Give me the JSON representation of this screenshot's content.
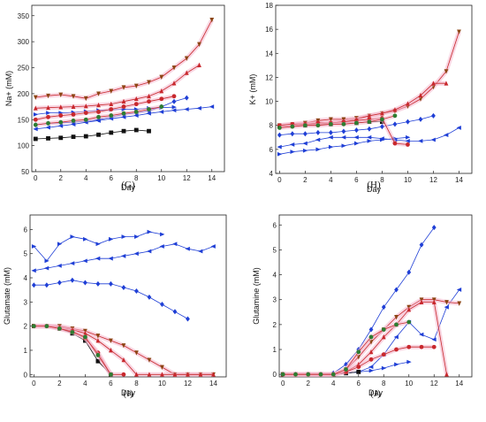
{
  "colors": {
    "blue": "#1f3fd6",
    "red": "#c8282d",
    "pink": "#f4b6cc",
    "black": "#111111",
    "green": "#2e7d32",
    "brown": "#8b4513"
  },
  "chart_data": [
    {
      "panel": "(G)",
      "type": "line",
      "xlabel": "Day",
      "ylabel": "Na+ (mM)",
      "xlim": [
        -0.3,
        15
      ],
      "ylim": [
        50,
        370
      ],
      "xticks": [
        "0",
        "2",
        "4",
        "6",
        "8",
        "10",
        "12",
        "14"
      ],
      "yticks": [
        "50",
        "100",
        "150",
        "200",
        "250",
        "300",
        "350"
      ],
      "series": [
        {
          "style": "blue",
          "marker": "tri-right",
          "x": [
            0,
            1,
            2,
            3,
            4,
            5,
            6,
            7,
            8,
            9,
            10,
            11
          ],
          "y": [
            160,
            163,
            163,
            164,
            166,
            168,
            169,
            170,
            170,
            172,
            173,
            174
          ]
        },
        {
          "style": "blue",
          "marker": "tri-left",
          "x": [
            0,
            1,
            2,
            3,
            4,
            5,
            6,
            7,
            8,
            9,
            10,
            11,
            12,
            13,
            14
          ],
          "y": [
            132,
            135,
            138,
            141,
            145,
            148,
            152,
            155,
            158,
            162,
            165,
            168,
            170,
            172,
            175
          ]
        },
        {
          "style": "blue",
          "marker": "diamond",
          "x": [
            0,
            1,
            2,
            3,
            4,
            5,
            6,
            7,
            8,
            9,
            10,
            11,
            12
          ],
          "y": [
            140,
            143,
            144,
            145,
            147,
            150,
            155,
            160,
            163,
            167,
            175,
            185,
            192
          ]
        },
        {
          "style": "black",
          "marker": "square",
          "x": [
            0,
            1,
            2,
            3,
            4,
            5,
            6,
            7,
            8,
            9
          ],
          "y": [
            113,
            114,
            115,
            117,
            118,
            121,
            125,
            128,
            130,
            128
          ]
        },
        {
          "style": "red",
          "marker": "down",
          "x": [
            0,
            1,
            2,
            3,
            4,
            5,
            6,
            7,
            8,
            9,
            10,
            11,
            12,
            13,
            14
          ],
          "y": [
            193,
            196,
            198,
            195,
            191,
            200,
            205,
            212,
            215,
            222,
            232,
            250,
            268,
            295,
            342
          ]
        },
        {
          "style": "red",
          "marker": "up",
          "x": [
            0,
            1,
            2,
            3,
            4,
            5,
            6,
            7,
            8,
            9,
            10,
            11,
            12,
            13
          ],
          "y": [
            172,
            173,
            174,
            175,
            176,
            178,
            180,
            185,
            190,
            195,
            205,
            220,
            240,
            255
          ]
        },
        {
          "style": "red",
          "marker": "circle",
          "x": [
            0,
            1,
            2,
            3,
            4,
            5,
            6,
            7,
            8,
            9,
            10,
            11
          ],
          "y": [
            150,
            155,
            158,
            160,
            163,
            165,
            170,
            175,
            180,
            185,
            190,
            195
          ]
        },
        {
          "style": "red",
          "marker": "hex",
          "x": [
            0,
            1,
            2,
            3,
            4,
            5,
            6,
            7,
            8,
            9,
            10
          ],
          "y": [
            140,
            143,
            145,
            148,
            150,
            155,
            158,
            162,
            165,
            170,
            175
          ]
        }
      ]
    },
    {
      "panel": "(H)",
      "type": "line",
      "xlabel": "Day",
      "ylabel": "K+ (mM)",
      "xlim": [
        -0.3,
        15
      ],
      "ylim": [
        4,
        18
      ],
      "xticks": [
        "0",
        "2",
        "4",
        "6",
        "8",
        "10",
        "12",
        "14"
      ],
      "yticks": [
        "4",
        "6",
        "8",
        "10",
        "12",
        "14",
        "16",
        "18"
      ],
      "series": [
        {
          "style": "blue",
          "marker": "tri-right",
          "x": [
            0,
            1,
            2,
            3,
            4,
            5,
            6,
            7,
            8,
            9,
            10
          ],
          "y": [
            5.6,
            5.8,
            5.9,
            6.0,
            6.2,
            6.3,
            6.5,
            6.7,
            6.8,
            6.9,
            7.0
          ]
        },
        {
          "style": "blue",
          "marker": "tri-left",
          "x": [
            0,
            1,
            2,
            3,
            4,
            5,
            6,
            7,
            8,
            9,
            10,
            11,
            12,
            13,
            14
          ],
          "y": [
            6.2,
            6.4,
            6.5,
            6.8,
            7.0,
            7.0,
            7.0,
            7.0,
            6.9,
            6.8,
            6.7,
            6.7,
            6.8,
            7.2,
            7.8
          ]
        },
        {
          "style": "blue",
          "marker": "diamond",
          "x": [
            0,
            1,
            2,
            3,
            4,
            5,
            6,
            7,
            8,
            9,
            10,
            11,
            12
          ],
          "y": [
            7.2,
            7.3,
            7.3,
            7.4,
            7.4,
            7.5,
            7.6,
            7.7,
            7.9,
            8.1,
            8.3,
            8.5,
            8.8
          ]
        },
        {
          "style": "black",
          "marker": "square",
          "x": [
            0,
            1,
            2,
            3,
            4,
            5,
            6,
            7,
            8
          ],
          "y": [
            7.9,
            8.0,
            8.0,
            8.1,
            8.1,
            8.2,
            8.2,
            8.3,
            8.3
          ]
        },
        {
          "style": "red",
          "marker": "down",
          "x": [
            0,
            1,
            2,
            3,
            4,
            5,
            6,
            7,
            8,
            9,
            10,
            11,
            12,
            13,
            14
          ],
          "y": [
            8.0,
            8.1,
            8.2,
            8.4,
            8.5,
            8.5,
            8.6,
            8.8,
            9.0,
            9.2,
            9.6,
            10.2,
            11.2,
            12.5,
            15.8
          ]
        },
        {
          "style": "red",
          "marker": "up",
          "x": [
            0,
            1,
            2,
            3,
            4,
            5,
            6,
            7,
            8,
            9,
            10,
            11,
            12,
            13
          ],
          "y": [
            7.9,
            8.0,
            8.1,
            8.1,
            8.2,
            8.3,
            8.5,
            8.8,
            9.0,
            9.3,
            9.8,
            10.5,
            11.5,
            11.5
          ]
        },
        {
          "style": "red",
          "marker": "circle",
          "x": [
            0,
            1,
            2,
            3,
            4,
            5,
            6,
            7,
            8,
            9,
            10
          ],
          "y": [
            8.0,
            8.1,
            8.1,
            8.2,
            8.2,
            8.3,
            8.4,
            8.5,
            8.6,
            6.5,
            6.4
          ]
        },
        {
          "style": "red",
          "marker": "hex",
          "x": [
            0,
            1,
            2,
            3,
            4,
            5,
            6,
            7,
            8,
            9
          ],
          "y": [
            7.8,
            7.9,
            8.0,
            8.0,
            8.1,
            8.1,
            8.2,
            8.3,
            8.5,
            8.8
          ]
        }
      ]
    },
    {
      "panel": "(I)",
      "type": "line",
      "xlabel": "Day",
      "ylabel": "Glutamate (mM)",
      "xlim": [
        -0.3,
        15
      ],
      "ylim": [
        -0.1,
        6.6
      ],
      "xticks": [
        "0",
        "2",
        "4",
        "6",
        "8",
        "10",
        "12",
        "14"
      ],
      "yticks": [
        "0",
        "1",
        "2",
        "3",
        "4",
        "5",
        "6"
      ],
      "series": [
        {
          "style": "blue",
          "marker": "tri-right",
          "x": [
            0,
            1,
            2,
            3,
            4,
            5,
            6,
            7,
            8,
            9,
            10
          ],
          "y": [
            5.3,
            4.7,
            5.4,
            5.7,
            5.6,
            5.4,
            5.6,
            5.7,
            5.7,
            5.9,
            5.8
          ]
        },
        {
          "style": "blue",
          "marker": "tri-left",
          "x": [
            0,
            1,
            2,
            3,
            4,
            5,
            6,
            7,
            8,
            9,
            10,
            11,
            12,
            13,
            14
          ],
          "y": [
            4.3,
            4.4,
            4.5,
            4.6,
            4.7,
            4.8,
            4.8,
            4.9,
            5.0,
            5.1,
            5.3,
            5.4,
            5.2,
            5.1,
            5.3
          ]
        },
        {
          "style": "blue",
          "marker": "diamond",
          "x": [
            0,
            1,
            2,
            3,
            4,
            5,
            6,
            7,
            8,
            9,
            10,
            11,
            12
          ],
          "y": [
            3.7,
            3.7,
            3.8,
            3.9,
            3.8,
            3.75,
            3.75,
            3.6,
            3.45,
            3.2,
            2.9,
            2.6,
            2.3
          ]
        },
        {
          "style": "black",
          "marker": "square",
          "x": [
            0,
            1,
            2,
            3,
            4,
            5,
            6
          ],
          "y": [
            2.0,
            2.0,
            1.9,
            1.7,
            1.4,
            0.55,
            0.0
          ]
        },
        {
          "style": "red",
          "marker": "down",
          "x": [
            0,
            1,
            2,
            3,
            4,
            5,
            6,
            7,
            8,
            9,
            10,
            11,
            12,
            13,
            14
          ],
          "y": [
            2.0,
            2.0,
            2.0,
            1.9,
            1.8,
            1.6,
            1.4,
            1.2,
            0.9,
            0.6,
            0.3,
            0.0,
            0.0,
            0.0,
            0.0
          ]
        },
        {
          "style": "red",
          "marker": "up",
          "x": [
            0,
            1,
            2,
            3,
            4,
            5,
            6,
            7,
            8,
            9,
            10,
            11,
            12,
            13,
            14
          ],
          "y": [
            2.0,
            2.0,
            1.95,
            1.85,
            1.7,
            1.4,
            1.0,
            0.6,
            0.0,
            0.0,
            0.0,
            0.0,
            0.0,
            0.0,
            0.0
          ]
        },
        {
          "style": "red",
          "marker": "circle",
          "x": [
            0,
            1,
            2,
            3,
            4,
            5,
            6,
            7
          ],
          "y": [
            2.0,
            2.0,
            1.9,
            1.8,
            1.5,
            0.9,
            0.0,
            0.0
          ]
        },
        {
          "style": "red",
          "marker": "hex",
          "x": [
            0,
            1,
            2,
            3,
            4,
            5,
            6
          ],
          "y": [
            2.0,
            2.0,
            1.9,
            1.75,
            1.55,
            0.8,
            0.0
          ]
        }
      ]
    },
    {
      "panel": "(J)",
      "type": "line",
      "xlabel": "Day",
      "ylabel": "Glutamine (mM)",
      "xlim": [
        -0.3,
        15
      ],
      "ylim": [
        -0.1,
        6.4
      ],
      "xticks": [
        "0",
        "2",
        "4",
        "6",
        "8",
        "10",
        "12",
        "14"
      ],
      "yticks": [
        "0",
        "1",
        "2",
        "3",
        "4",
        "5",
        "6"
      ],
      "series": [
        {
          "style": "blue",
          "marker": "tri-right",
          "x": [
            0,
            1,
            2,
            3,
            4,
            5,
            6,
            7,
            8,
            9,
            10
          ],
          "y": [
            0,
            0,
            0,
            0,
            0.02,
            0.05,
            0.1,
            0.15,
            0.25,
            0.4,
            0.5
          ]
        },
        {
          "style": "blue",
          "marker": "tri-left",
          "x": [
            0,
            1,
            2,
            3,
            4,
            5,
            6,
            7,
            8,
            9,
            10,
            11,
            12,
            13,
            14
          ],
          "y": [
            0,
            0,
            0,
            0,
            0,
            0.05,
            0.1,
            0.3,
            0.8,
            1.5,
            2.1,
            1.6,
            1.4,
            2.7,
            3.4
          ]
        },
        {
          "style": "blue",
          "marker": "diamond",
          "x": [
            0,
            1,
            2,
            3,
            4,
            5,
            6,
            7,
            8,
            9,
            10,
            11,
            12
          ],
          "y": [
            0,
            0,
            0,
            0,
            0.05,
            0.4,
            1.0,
            1.8,
            2.7,
            3.4,
            4.1,
            5.2,
            5.9
          ]
        },
        {
          "style": "black",
          "marker": "square",
          "x": [
            0,
            1,
            2,
            3,
            4,
            5,
            6
          ],
          "y": [
            0,
            0,
            0,
            0,
            0,
            0.05,
            0.1
          ]
        },
        {
          "style": "red",
          "marker": "down",
          "x": [
            0,
            1,
            2,
            3,
            4,
            5,
            6,
            7,
            8,
            9,
            10,
            11,
            12,
            13,
            14
          ],
          "y": [
            0,
            0,
            0,
            0,
            0,
            0.2,
            0.7,
            1.3,
            1.8,
            2.3,
            2.7,
            3.0,
            3.0,
            2.9,
            2.85
          ]
        },
        {
          "style": "red",
          "marker": "up",
          "x": [
            0,
            1,
            2,
            3,
            4,
            5,
            6,
            7,
            8,
            9,
            10,
            11,
            12,
            13
          ],
          "y": [
            0,
            0,
            0,
            0,
            0,
            0.1,
            0.4,
            0.9,
            1.5,
            2.0,
            2.6,
            2.9,
            2.9,
            0.0
          ]
        },
        {
          "style": "red",
          "marker": "circle",
          "x": [
            0,
            1,
            2,
            3,
            4,
            5,
            6,
            7,
            8,
            9,
            10,
            11,
            12
          ],
          "y": [
            0,
            0,
            0,
            0,
            0,
            0.1,
            0.3,
            0.6,
            0.8,
            1.0,
            1.1,
            1.1,
            1.1
          ]
        },
        {
          "style": "red",
          "marker": "hex",
          "x": [
            0,
            1,
            2,
            3,
            4,
            5,
            6,
            7,
            8,
            9,
            10
          ],
          "y": [
            0,
            0,
            0,
            0,
            0,
            0.2,
            0.9,
            1.5,
            1.8,
            2.0,
            2.1
          ]
        }
      ]
    }
  ]
}
